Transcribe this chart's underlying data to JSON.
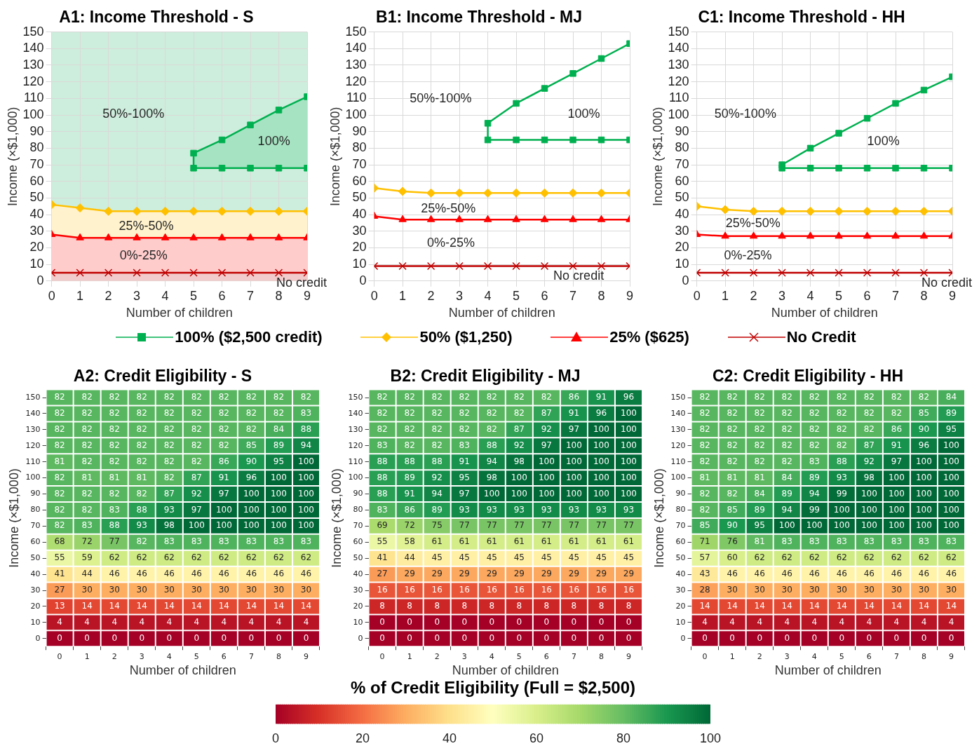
{
  "chart_data": [
    {
      "type": "line",
      "title": "A1: Income Threshold - S",
      "xlabel": "Number of children",
      "ylabel": "Income (×$1,000)",
      "x": [
        0,
        1,
        2,
        3,
        4,
        5,
        6,
        7,
        8,
        9
      ],
      "xlim": [
        0,
        9
      ],
      "xticks": [
        0,
        1,
        2,
        3,
        4,
        5,
        6,
        7,
        8,
        9
      ],
      "ylim": [
        0,
        150
      ],
      "yticks": [
        0,
        10,
        20,
        30,
        40,
        50,
        60,
        70,
        80,
        90,
        100,
        110,
        120,
        130,
        140,
        150
      ],
      "grid": true,
      "bands": [
        {
          "axis": "y",
          "from": 0,
          "to": 150,
          "color": "#cdeedc"
        }
      ],
      "annotations": [
        "50%-100%",
        "100%",
        "25%-50%",
        "0%-25%",
        "No credit"
      ],
      "series": [
        {
          "type": "area",
          "color": "#00b050",
          "marker": "square",
          "x": [
            9,
            8,
            7,
            6,
            5,
            5,
            6,
            7,
            8,
            9
          ],
          "values": [
            111,
            103,
            94,
            85,
            77,
            68,
            68,
            68,
            68,
            68
          ]
        },
        {
          "type": "area",
          "color": "#ffc000",
          "marker": "diamond",
          "values": [
            46,
            44,
            42,
            42,
            42,
            42,
            42,
            42,
            42,
            42
          ]
        },
        {
          "type": "area",
          "color": "#ff0000",
          "marker": "triangle",
          "values": [
            28,
            26,
            26,
            26,
            26,
            26,
            26,
            26,
            26,
            26
          ]
        },
        {
          "type": "area",
          "color": "#c00000",
          "marker": "cross",
          "values": [
            5,
            5,
            5,
            5,
            5,
            5,
            5,
            5,
            5,
            5
          ]
        }
      ]
    },
    {
      "type": "line",
      "title": "B1: Income Threshold - MJ",
      "xlabel": "Number of children",
      "ylabel": "Income (×$1,000)",
      "x": [
        0,
        1,
        2,
        3,
        4,
        5,
        6,
        7,
        8,
        9
      ],
      "xlim": [
        0,
        9
      ],
      "xticks": [
        0,
        1,
        2,
        3,
        4,
        5,
        6,
        7,
        8,
        9
      ],
      "ylim": [
        0,
        150
      ],
      "yticks": [
        0,
        10,
        20,
        30,
        40,
        50,
        60,
        70,
        80,
        90,
        100,
        110,
        120,
        130,
        140,
        150
      ],
      "grid": true,
      "legend": "bottom",
      "annotations": [
        "50%-100%",
        "100%",
        "25%-50%",
        "0%-25%",
        "No credit"
      ],
      "series": [
        {
          "name": "100% ($2,500 credit)",
          "color": "#00b050",
          "marker": "square",
          "x": [
            9,
            8,
            7,
            6,
            5,
            4,
            4,
            5,
            6,
            7,
            8,
            9
          ],
          "values": [
            143,
            134,
            125,
            116,
            107,
            95,
            85,
            85,
            85,
            85,
            85,
            85
          ]
        },
        {
          "name": "50% ($1,250)",
          "color": "#ffc000",
          "marker": "diamond",
          "values": [
            56,
            54,
            53,
            53,
            53,
            53,
            53,
            53,
            53,
            53
          ]
        },
        {
          "name": "25% ($625)",
          "color": "#ff0000",
          "marker": "triangle",
          "values": [
            39,
            37,
            37,
            37,
            37,
            37,
            37,
            37,
            37,
            37
          ]
        },
        {
          "name": "No Credit",
          "color": "#c00000",
          "marker": "cross",
          "values": [
            9,
            9,
            9,
            9,
            9,
            9,
            9,
            9,
            9,
            9
          ]
        }
      ]
    },
    {
      "type": "line",
      "title": "C1: Income Threshold - HH",
      "xlabel": "Number of children",
      "ylabel": "Income (×$1,000)",
      "x": [
        0,
        1,
        2,
        3,
        4,
        5,
        6,
        7,
        8,
        9
      ],
      "xlim": [
        0,
        9
      ],
      "xticks": [
        0,
        1,
        2,
        3,
        4,
        5,
        6,
        7,
        8,
        9
      ],
      "ylim": [
        0,
        150
      ],
      "yticks": [
        0,
        10,
        20,
        30,
        40,
        50,
        60,
        70,
        80,
        90,
        100,
        110,
        120,
        130,
        140,
        150
      ],
      "grid": true,
      "annotations": [
        "50%-100%",
        "100%",
        "25%-50%",
        "0%-25%",
        "No credit"
      ],
      "series": [
        {
          "color": "#00b050",
          "marker": "square",
          "x": [
            9,
            8,
            7,
            6,
            5,
            4,
            3,
            3,
            4,
            5,
            6,
            7,
            8,
            9
          ],
          "values": [
            123,
            115,
            107,
            98,
            89,
            80,
            70,
            68,
            68,
            68,
            68,
            68,
            68,
            68
          ]
        },
        {
          "color": "#ffc000",
          "marker": "diamond",
          "values": [
            45,
            43,
            42,
            42,
            42,
            42,
            42,
            42,
            42,
            42
          ]
        },
        {
          "color": "#ff0000",
          "marker": "triangle",
          "values": [
            28,
            27,
            27,
            27,
            27,
            27,
            27,
            27,
            27,
            27
          ]
        },
        {
          "color": "#c00000",
          "marker": "cross",
          "values": [
            5,
            5,
            5,
            5,
            5,
            5,
            5,
            5,
            5,
            5
          ]
        }
      ]
    },
    {
      "type": "heatmap",
      "title": "A2: Credit Eligibility - S",
      "xlabel": "Number of children",
      "ylabel": "Income (×$1,000)",
      "data_labels": true,
      "categories": [
        "0",
        "1",
        "2",
        "3",
        "4",
        "5",
        "6",
        "7",
        "8",
        "9"
      ],
      "y_categories": [
        "150",
        "140",
        "130",
        "120",
        "110",
        "100",
        "90",
        "80",
        "70",
        "60",
        "50",
        "40",
        "30",
        "20",
        "10",
        "0"
      ],
      "cells": [
        [
          82,
          82,
          82,
          82,
          82,
          82,
          82,
          82,
          82,
          82
        ],
        [
          82,
          82,
          82,
          82,
          82,
          82,
          82,
          82,
          82,
          83
        ],
        [
          82,
          82,
          82,
          82,
          82,
          82,
          82,
          82,
          84,
          88
        ],
        [
          82,
          82,
          82,
          82,
          82,
          82,
          82,
          85,
          89,
          94
        ],
        [
          81,
          82,
          82,
          82,
          82,
          82,
          86,
          90,
          95,
          100
        ],
        [
          82,
          81,
          81,
          81,
          82,
          87,
          91,
          96,
          100,
          100
        ],
        [
          82,
          82,
          82,
          82,
          87,
          92,
          97,
          100,
          100,
          100
        ],
        [
          82,
          82,
          83,
          88,
          93,
          97,
          100,
          100,
          100,
          100
        ],
        [
          82,
          83,
          88,
          93,
          98,
          100,
          100,
          100,
          100,
          100
        ],
        [
          68,
          72,
          77,
          82,
          83,
          83,
          83,
          83,
          83,
          83
        ],
        [
          55,
          59,
          62,
          62,
          62,
          62,
          62,
          62,
          62,
          62
        ],
        [
          41,
          44,
          46,
          46,
          46,
          46,
          46,
          46,
          46,
          46
        ],
        [
          27,
          30,
          30,
          30,
          30,
          30,
          30,
          30,
          30,
          30
        ],
        [
          13,
          14,
          14,
          14,
          14,
          14,
          14,
          14,
          14,
          14
        ],
        [
          4,
          4,
          4,
          4,
          4,
          4,
          4,
          4,
          4,
          4
        ],
        [
          0,
          0,
          0,
          0,
          0,
          0,
          0,
          0,
          0,
          0
        ]
      ]
    },
    {
      "type": "heatmap",
      "title": "B2: Credit Eligibility - MJ",
      "xlabel": "Number of children",
      "ylabel": "Income (×$1,000)",
      "data_labels": true,
      "clabel": "% of Credit Eligibility (Full = $2,500)",
      "clim": [
        0,
        100
      ],
      "cticks": [
        0,
        20,
        40,
        60,
        80,
        100
      ],
      "categories": [
        "0",
        "1",
        "2",
        "3",
        "4",
        "5",
        "6",
        "7",
        "8",
        "9"
      ],
      "y_categories": [
        "150",
        "140",
        "130",
        "120",
        "110",
        "100",
        "90",
        "80",
        "70",
        "60",
        "50",
        "40",
        "30",
        "20",
        "10",
        "0"
      ],
      "cells": [
        [
          82,
          82,
          82,
          82,
          82,
          82,
          82,
          86,
          91,
          96
        ],
        [
          82,
          82,
          82,
          82,
          82,
          82,
          87,
          91,
          96,
          100
        ],
        [
          82,
          82,
          82,
          82,
          82,
          87,
          92,
          97,
          100,
          100
        ],
        [
          83,
          82,
          82,
          83,
          88,
          92,
          97,
          100,
          100,
          100
        ],
        [
          88,
          88,
          88,
          91,
          94,
          98,
          100,
          100,
          100,
          100
        ],
        [
          88,
          89,
          92,
          95,
          98,
          100,
          100,
          100,
          100,
          100
        ],
        [
          88,
          91,
          94,
          97,
          100,
          100,
          100,
          100,
          100,
          100
        ],
        [
          83,
          86,
          89,
          93,
          93,
          93,
          93,
          93,
          93,
          93
        ],
        [
          69,
          72,
          75,
          77,
          77,
          77,
          77,
          77,
          77,
          77
        ],
        [
          55,
          58,
          61,
          61,
          61,
          61,
          61,
          61,
          61,
          61
        ],
        [
          41,
          44,
          45,
          45,
          45,
          45,
          45,
          45,
          45,
          45
        ],
        [
          27,
          29,
          29,
          29,
          29,
          29,
          29,
          29,
          29,
          29
        ],
        [
          16,
          16,
          16,
          16,
          16,
          16,
          16,
          16,
          16,
          16
        ],
        [
          8,
          8,
          8,
          8,
          8,
          8,
          8,
          8,
          8,
          8
        ],
        [
          0,
          0,
          0,
          0,
          0,
          0,
          0,
          0,
          0,
          0
        ],
        [
          0,
          0,
          0,
          0,
          0,
          0,
          0,
          0,
          0,
          0
        ]
      ]
    },
    {
      "type": "heatmap",
      "title": "C2: Credit Eligibility - HH",
      "xlabel": "Number of children",
      "ylabel": "Income (×$1,000)",
      "data_labels": true,
      "categories": [
        "0",
        "1",
        "2",
        "3",
        "4",
        "5",
        "6",
        "7",
        "8",
        "9"
      ],
      "y_categories": [
        "150",
        "140",
        "130",
        "120",
        "110",
        "100",
        "90",
        "80",
        "70",
        "60",
        "50",
        "40",
        "30",
        "20",
        "10",
        "0"
      ],
      "cells": [
        [
          82,
          82,
          82,
          82,
          82,
          82,
          82,
          82,
          82,
          84
        ],
        [
          82,
          82,
          82,
          82,
          82,
          82,
          82,
          82,
          85,
          89
        ],
        [
          82,
          82,
          82,
          82,
          82,
          82,
          82,
          86,
          90,
          95
        ],
        [
          82,
          82,
          82,
          82,
          82,
          82,
          87,
          91,
          96,
          100
        ],
        [
          82,
          82,
          82,
          82,
          83,
          88,
          92,
          97,
          100,
          100
        ],
        [
          81,
          81,
          81,
          84,
          89,
          93,
          98,
          100,
          100,
          100
        ],
        [
          82,
          82,
          84,
          89,
          94,
          99,
          100,
          100,
          100,
          100
        ],
        [
          82,
          85,
          89,
          94,
          99,
          100,
          100,
          100,
          100,
          100
        ],
        [
          85,
          90,
          95,
          100,
          100,
          100,
          100,
          100,
          100,
          100
        ],
        [
          71,
          76,
          81,
          83,
          83,
          83,
          83,
          83,
          83,
          83
        ],
        [
          57,
          60,
          62,
          62,
          62,
          62,
          62,
          62,
          62,
          62
        ],
        [
          43,
          46,
          46,
          46,
          46,
          46,
          46,
          46,
          46,
          46
        ],
        [
          28,
          30,
          30,
          30,
          30,
          30,
          30,
          30,
          30,
          30
        ],
        [
          14,
          14,
          14,
          14,
          14,
          14,
          14,
          14,
          14,
          14
        ],
        [
          4,
          4,
          4,
          4,
          4,
          4,
          4,
          4,
          4,
          4
        ],
        [
          0,
          0,
          0,
          0,
          0,
          0,
          0,
          0,
          0,
          0
        ]
      ]
    }
  ]
}
